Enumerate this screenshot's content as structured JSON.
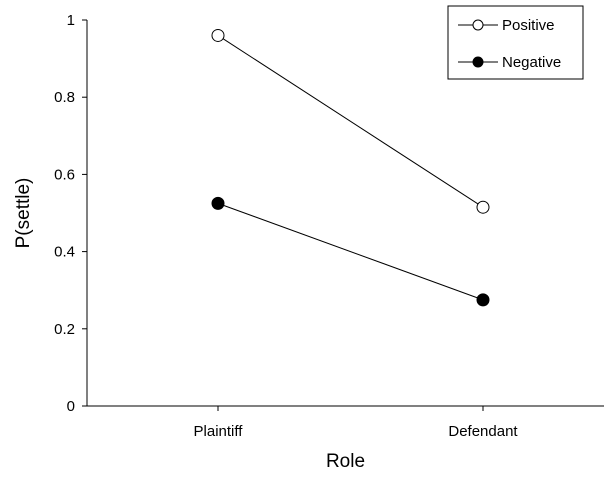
{
  "chart_data": {
    "type": "line",
    "categories": [
      "Plaintiff",
      "Defendant"
    ],
    "series": [
      {
        "name": "Positive",
        "values": [
          0.96,
          0.515
        ],
        "marker": "open-circle",
        "color": "#000000"
      },
      {
        "name": "Negative",
        "values": [
          0.525,
          0.275
        ],
        "marker": "filled-circle",
        "color": "#000000"
      }
    ],
    "title": "",
    "xlabel": "Role",
    "ylabel": "P(settle)",
    "ylim": [
      0,
      1
    ],
    "yticks": [
      "0",
      "0.2",
      "0.4",
      "0.6",
      "0.8",
      "1"
    ],
    "grid": false,
    "legend": "top-right"
  }
}
